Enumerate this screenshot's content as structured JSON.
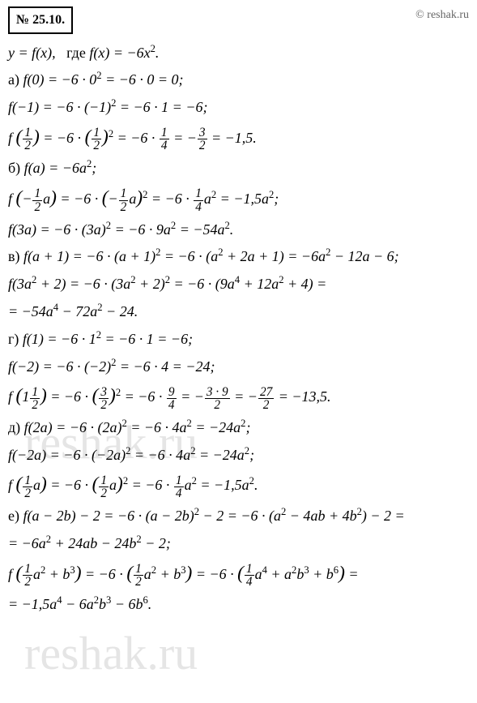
{
  "header": {
    "problem_number": "№ 25.10.",
    "copyright": "© reshak.ru"
  },
  "watermarks": {
    "wm1": "reshak.ru",
    "wm2": "reshak.ru"
  },
  "lines": {
    "intro": "y = f(x),   где f(x) = −6x².",
    "a_label": "а) ",
    "a1": "f(0) = −6 · 0² = −6 · 0 = 0;",
    "a2": "f(−1) = −6 · (−1)² = −6 · 1 = −6;",
    "a3_pre": "f",
    "a3_paren1": "(½)",
    "a3_mid": " = −6 · ",
    "a3_paren2": "(½)²",
    "a3_post": " = −6 · ¼ = −",
    "a3_frac": "3/2",
    "a3_end": " = −1,5.",
    "b_label": "б) ",
    "b1": "f(a) = −6a²;",
    "b2_pre": "f",
    "b2_paren": "(−½a)",
    "b2_mid": " = −6 · ",
    "b2_paren2": "(−½a)²",
    "b2_post": " = −6 · ¼a² = −1,5a²;",
    "b3": "f(3a) = −6 · (3a)² = −6 · 9a² = −54a².",
    "v_label": "в) ",
    "v1": "f(a + 1) = −6 · (a + 1)² = −6 · (a² + 2a + 1) = −6a² − 12a − 6;",
    "v2": "f(3a² + 2) = −6 · (3a² + 2)² = −6 · (9a⁴ + 12a² + 4) =",
    "v3": "= −54a⁴ − 72a² − 24.",
    "g_label": "г) ",
    "g1": "f(1) = −6 · 1² = −6 · 1 = −6;",
    "g2": "f(−2) = −6 · (−2)² = −6 · 4 = −24;",
    "g3_pre": "f",
    "g3_paren": "(1½)",
    "g3_mid": " = −6 · ",
    "g3_paren2": "(3/2)²",
    "g3_post": " = −6 · ",
    "g3_frac1": "9/4",
    "g3_mid2": " = −",
    "g3_frac2": "3·9/2",
    "g3_mid3": " = −",
    "g3_frac3": "27/2",
    "g3_end": " = −13,5.",
    "d_label": "д) ",
    "d1": "f(2a) = −6 · (2a)² = −6 · 4a² = −24a²;",
    "d2": "f(−2a) = −6 · (−2a)² = −6 · 4a² = −24a²;",
    "d3_pre": "f",
    "d3_paren": "(½a)",
    "d3_mid": " = −6 · ",
    "d3_paren2": "(½a)²",
    "d3_post": " = −6 · ¼a² = −1,5a².",
    "e_label": "е) ",
    "e1": "f(a − 2b) − 2 = −6 · (a − 2b)² − 2 = −6 · (a² − 4ab + 4b²) − 2 =",
    "e2": "= −6a² + 24ab − 24b² − 2;",
    "e3_pre": "f",
    "e3_paren": "(½a² + b³)",
    "e3_mid": " = −6 · ",
    "e3_paren2": "(½a² + b³)",
    "e3_mid2": " = −6 · ",
    "e3_paren3": "(¼a⁴ + a²b³ + b⁶)",
    "e3_end": " =",
    "e4": "= −1,5a⁴ − 6a²b³ − 6b⁶."
  },
  "colors": {
    "text": "#000000",
    "background": "#ffffff",
    "watermark": "rgba(180,180,180,0.35)",
    "copyright": "#666666"
  }
}
